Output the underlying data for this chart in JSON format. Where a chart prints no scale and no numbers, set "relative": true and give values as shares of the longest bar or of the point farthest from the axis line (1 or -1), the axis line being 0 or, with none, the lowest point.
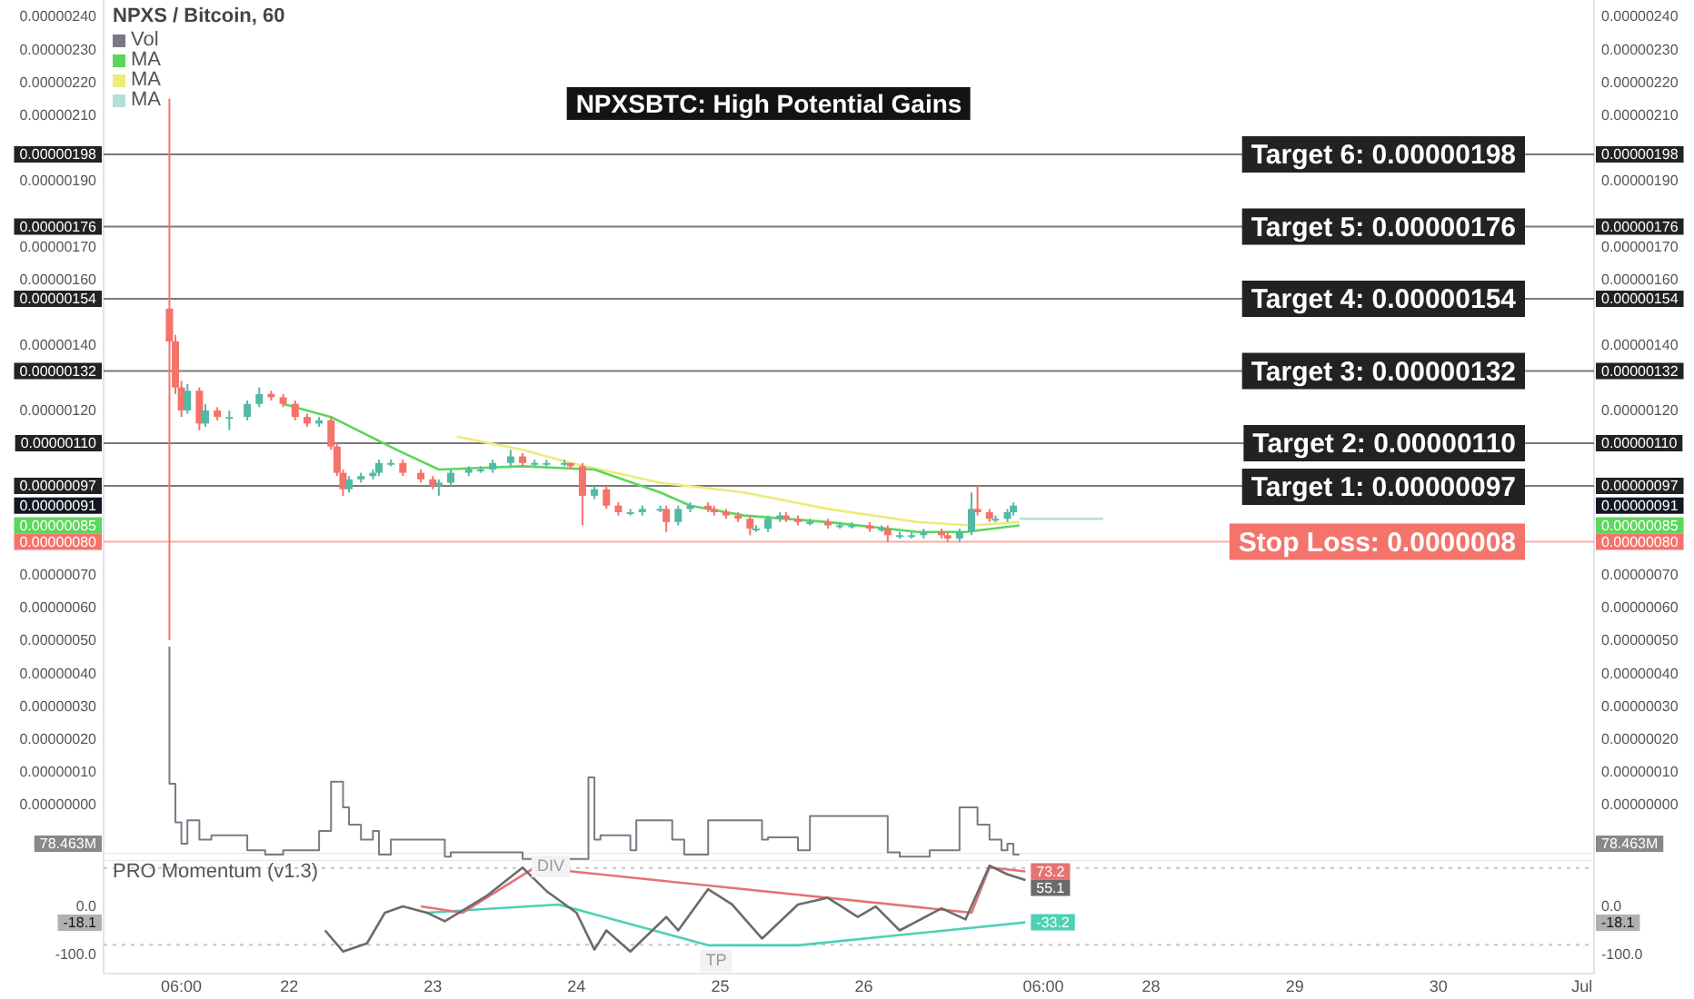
{
  "chart_data": [
    {
      "type": "candlestick",
      "title": "NPXSBTC: High Potential Gains",
      "subtitle": "NPXS / Bitcoin, 60",
      "legend": "top left",
      "tick_labels": "y",
      "x": [
        "--06-21T04:00",
        "--06-21T05:00",
        "--06-21T06:00",
        "--06-21T07:00",
        "--06-21T09:00",
        "--06-21T10:00",
        "--06-21T12:00",
        "--06-21T14:00",
        "--06-21T17:00",
        "--06-21T19:00",
        "--06-21T21:00",
        "--06-21T23:00",
        "--06-22T01:00",
        "--06-22T03:00",
        "--06-22T05:00",
        "--06-22T07:00",
        "--06-22T08:00",
        "--06-22T09:00",
        "--06-22T10:00",
        "--06-22T12:00",
        "--06-22T14:00",
        "--06-22T15:00",
        "--06-22T17:00",
        "--06-22T19:00",
        "--06-22T22:00",
        "--06-23T00:00",
        "--06-23T01:00",
        "--06-23T03:00",
        "--06-23T06:00",
        "--06-23T08:00",
        "--06-23T10:00",
        "--06-23T13:00",
        "--06-23T15:00",
        "--06-23T17:00",
        "--06-23T19:00",
        "--06-23T22:00",
        "--06-23T23:00",
        "--06-24T01:00",
        "--06-24T03:00",
        "--06-24T05:00",
        "--06-24T07:00",
        "--06-24T09:00",
        "--06-24T11:00",
        "--06-24T14:00",
        "--06-24T15:00",
        "--06-24T17:00",
        "--06-24T19:00",
        "--06-24T22:00",
        "--06-24T23:00",
        "--06-25T01:00",
        "--06-25T03:00",
        "--06-25T05:00",
        "--06-25T06:00",
        "--06-25T08:00",
        "--06-25T10:00",
        "--06-25T11:00",
        "--06-25T13:00",
        "--06-25T15:00",
        "--06-25T18:00",
        "--06-25T20:00",
        "--06-25T22:00",
        "--06-26T01:00",
        "--06-26T03:00",
        "--06-26T04:00",
        "--06-26T06:00",
        "--06-26T08:00",
        "--06-26T10:00",
        "--06-26T13:00",
        "--06-26T14:00",
        "--06-26T16:00",
        "--06-26T18:00",
        "--06-26T19:00",
        "--06-26T21:00",
        "--06-26T22:00",
        "--06-27T00:00",
        "--06-27T01:00"
      ],
      "ohlc": [
        [
          1.51e-06,
          2.15e-06,
          5e-07,
          1.41e-06
        ],
        [
          1.41e-06,
          1.43e-06,
          1.25e-06,
          1.27e-06
        ],
        [
          1.27e-06,
          1.29e-06,
          1.18e-06,
          1.2e-06
        ],
        [
          1.2e-06,
          1.28e-06,
          1.19e-06,
          1.26e-06
        ],
        [
          1.26e-06,
          1.27e-06,
          1.14e-06,
          1.16e-06
        ],
        [
          1.16e-06,
          1.22e-06,
          1.15e-06,
          1.2e-06
        ],
        [
          1.2e-06,
          1.21e-06,
          1.17e-06,
          1.18e-06
        ],
        [
          1.18e-06,
          1.2e-06,
          1.14e-06,
          1.18e-06
        ],
        [
          1.18e-06,
          1.23e-06,
          1.17e-06,
          1.22e-06
        ],
        [
          1.22e-06,
          1.27e-06,
          1.21e-06,
          1.25e-06
        ],
        [
          1.25e-06,
          1.26e-06,
          1.23e-06,
          1.24e-06
        ],
        [
          1.24e-06,
          1.25e-06,
          1.21e-06,
          1.22e-06
        ],
        [
          1.22e-06,
          1.23e-06,
          1.17e-06,
          1.18e-06
        ],
        [
          1.18e-06,
          1.19e-06,
          1.15e-06,
          1.16e-06
        ],
        [
          1.16e-06,
          1.18e-06,
          1.15e-06,
          1.17e-06
        ],
        [
          1.17e-06,
          1.18e-06,
          1.08e-06,
          1.09e-06
        ],
        [
          1.09e-06,
          1.1e-06,
          1e-06,
          1.01e-06
        ],
        [
          1.01e-06,
          1.02e-06,
          9.4e-07,
          9.6e-07
        ],
        [
          9.6e-07,
          1e-06,
          9.5e-07,
          9.9e-07
        ],
        [
          9.9e-07,
          1.01e-06,
          9.8e-07,
          1e-06
        ],
        [
          1e-06,
          1.02e-06,
          9.9e-07,
          1.01e-06
        ],
        [
          1.01e-06,
          1.05e-06,
          1e-06,
          1.04e-06
        ],
        [
          1.04e-06,
          1.05e-06,
          1.03e-06,
          1.04e-06
        ],
        [
          1.04e-06,
          1.05e-06,
          1e-06,
          1.01e-06
        ],
        [
          1.01e-06,
          1.02e-06,
          9.8e-07,
          9.9e-07
        ],
        [
          9.9e-07,
          1e-06,
          9.6e-07,
          9.7e-07
        ],
        [
          9.7e-07,
          9.9e-07,
          9.4e-07,
          9.8e-07
        ],
        [
          9.8e-07,
          1.02e-06,
          9.7e-07,
          1.01e-06
        ],
        [
          1.01e-06,
          1.03e-06,
          1e-06,
          1.02e-06
        ],
        [
          1.02e-06,
          1.03e-06,
          1.01e-06,
          1.02e-06
        ],
        [
          1.02e-06,
          1.05e-06,
          1.01e-06,
          1.04e-06
        ],
        [
          1.04e-06,
          1.08e-06,
          1.03e-06,
          1.06e-06
        ],
        [
          1.06e-06,
          1.07e-06,
          1.03e-06,
          1.04e-06
        ],
        [
          1.04e-06,
          1.05e-06,
          1.03e-06,
          1.04e-06
        ],
        [
          1.04e-06,
          1.05e-06,
          1.03e-06,
          1.04e-06
        ],
        [
          1.04e-06,
          1.05e-06,
          1.03e-06,
          1.04e-06
        ],
        [
          1.04e-06,
          1.04e-06,
          1.02e-06,
          1.03e-06
        ],
        [
          1.03e-06,
          1.04e-06,
          8.5e-07,
          9.4e-07
        ],
        [
          9.4e-07,
          9.7e-07,
          9.3e-07,
          9.6e-07
        ],
        [
          9.6e-07,
          9.7e-07,
          9e-07,
          9.1e-07
        ],
        [
          9.1e-07,
          9.2e-07,
          8.8e-07,
          8.9e-07
        ],
        [
          8.9e-07,
          9e-07,
          8.8e-07,
          8.9e-07
        ],
        [
          8.9e-07,
          9.1e-07,
          8.8e-07,
          9e-07
        ],
        [
          9e-07,
          9.1e-07,
          8.9e-07,
          9e-07
        ],
        [
          9e-07,
          9.1e-07,
          8.3e-07,
          8.6e-07
        ],
        [
          8.6e-07,
          9.1e-07,
          8.5e-07,
          9e-07
        ],
        [
          9e-07,
          9.2e-07,
          8.9e-07,
          9.1e-07
        ],
        [
          9.1e-07,
          9.2e-07,
          8.9e-07,
          9e-07
        ],
        [
          9e-07,
          9.1e-07,
          8.8e-07,
          8.9e-07
        ],
        [
          8.9e-07,
          9e-07,
          8.7e-07,
          8.8e-07
        ],
        [
          8.8e-07,
          8.9e-07,
          8.6e-07,
          8.7e-07
        ],
        [
          8.7e-07,
          8.8e-07,
          8.2e-07,
          8.4e-07
        ],
        [
          8.4e-07,
          8.5e-07,
          8.3e-07,
          8.4e-07
        ],
        [
          8.4e-07,
          8.8e-07,
          8.3e-07,
          8.7e-07
        ],
        [
          8.7e-07,
          8.9e-07,
          8.6e-07,
          8.8e-07
        ],
        [
          8.8e-07,
          8.9e-07,
          8.6e-07,
          8.7e-07
        ],
        [
          8.7e-07,
          8.8e-07,
          8.5e-07,
          8.6e-07
        ],
        [
          8.6e-07,
          8.7e-07,
          8.5e-07,
          8.6e-07
        ],
        [
          8.6e-07,
          8.7e-07,
          8.4e-07,
          8.5e-07
        ],
        [
          8.5e-07,
          8.6e-07,
          8.4e-07,
          8.5e-07
        ],
        [
          8.5e-07,
          8.6e-07,
          8.4e-07,
          8.5e-07
        ],
        [
          8.5e-07,
          8.6e-07,
          8.3e-07,
          8.4e-07
        ],
        [
          8.4e-07,
          8.5e-07,
          8.3e-07,
          8.4e-07
        ],
        [
          8.4e-07,
          8.5e-07,
          8e-07,
          8.2e-07
        ],
        [
          8.2e-07,
          8.3e-07,
          8.1e-07,
          8.2e-07
        ],
        [
          8.2e-07,
          8.3e-07,
          8.1e-07,
          8.2e-07
        ],
        [
          8.2e-07,
          8.4e-07,
          8.1e-07,
          8.3e-07
        ],
        [
          8.3e-07,
          8.4e-07,
          8.1e-07,
          8.2e-07
        ],
        [
          8.2e-07,
          8.3e-07,
          8e-07,
          8.1e-07
        ],
        [
          8.1e-07,
          8.4e-07,
          8e-07,
          8.3e-07
        ],
        [
          8.3e-07,
          9.5e-07,
          8.2e-07,
          9e-07
        ],
        [
          9e-07,
          9.7e-07,
          8.8e-07,
          8.9e-07
        ],
        [
          8.9e-07,
          9e-07,
          8.6e-07,
          8.7e-07
        ],
        [
          8.7e-07,
          8.8e-07,
          8.6e-07,
          8.7e-07
        ],
        [
          8.7e-07,
          9e-07,
          8.6e-07,
          8.9e-07
        ],
        [
          8.9e-07,
          9.2e-07,
          8.8e-07,
          9.1e-07
        ]
      ],
      "series": [
        {
          "type": "line",
          "name": "MA",
          "color": "#5cd65c",
          "x": [
            "--06-21T23:00",
            "--06-22T07:00",
            "--06-22T18:00",
            "--06-23T01:00",
            "--06-23T15:00",
            "--06-24T03:00",
            "--06-24T14:00",
            "--06-24T19:00",
            "--06-25T04:00",
            "--06-25T18:00",
            "--06-26T09:00",
            "--06-26T17:00",
            "--06-27T02:00"
          ],
          "values": [
            1.22e-06,
            1.18e-06,
            1.08e-06,
            1.02e-06,
            1.03e-06,
            1.02e-06,
            9.5e-07,
            9.1e-07,
            8.8e-07,
            8.6e-07,
            8.3e-07,
            8.3e-07,
            8.5e-07
          ]
        },
        {
          "type": "line",
          "name": "MA",
          "color": "#ecec7a",
          "x": [
            "--06-23T04:00",
            "--06-23T15:00",
            "--06-23T23:00",
            "--06-24T14:00",
            "--06-25T04:00",
            "--06-25T18:00",
            "--06-26T09:00",
            "--06-26T18:00",
            "--06-27T02:00"
          ],
          "values": [
            1.12e-06,
            1.08e-06,
            1.04e-06,
            9.8e-07,
            9.5e-07,
            9e-07,
            8.6e-07,
            8.5e-07,
            8.6e-07
          ]
        },
        {
          "type": "line",
          "name": "MA",
          "color": "#b2e0d6",
          "x": [
            "--06-27T02:00",
            "--06-27T16:00"
          ],
          "values": [
            8.7e-07,
            8.7e-07
          ]
        }
      ],
      "ref_lines": [
        {
          "axis": "y",
          "value": 1.98e-06,
          "label": "Target 6: 0.00000198",
          "color": "#222222"
        },
        {
          "axis": "y",
          "value": 1.76e-06,
          "label": "Target 5: 0.00000176",
          "color": "#222222"
        },
        {
          "axis": "y",
          "value": 1.54e-06,
          "label": "Target 4: 0.00000154",
          "color": "#222222"
        },
        {
          "axis": "y",
          "value": 1.32e-06,
          "label": "Target 3: 0.00000132",
          "color": "#222222"
        },
        {
          "axis": "y",
          "value": 1.1e-06,
          "label": "Target 2: 0.00000110",
          "color": "#222222"
        },
        {
          "axis": "y",
          "value": 9.7e-07,
          "label": "Target 1: 0.00000097",
          "color": "#222222"
        },
        {
          "axis": "y",
          "value": 8e-07,
          "label": "Stop Loss: 0.0000008",
          "color": "#f4736b"
        }
      ],
      "xlim": [
        "--06-20T17:00",
        "--07-01T02:00"
      ],
      "xticks": [
        {
          "value": "--06-21T06:00",
          "label": "06:00"
        },
        {
          "value": "--06-22",
          "label": "22"
        },
        {
          "value": "--06-23",
          "label": "23"
        },
        {
          "value": "--06-24",
          "label": "24"
        },
        {
          "value": "--06-25",
          "label": "25"
        },
        {
          "value": "--06-26",
          "label": "26"
        },
        {
          "value": "--06-27T06:00",
          "label": "06:00"
        },
        {
          "value": "--06-28",
          "label": "28"
        },
        {
          "value": "--06-29",
          "label": "29"
        },
        {
          "value": "--06-30",
          "label": "30"
        },
        {
          "value": "--07-01",
          "label": "Jul"
        }
      ],
      "ylim": [
        -1.5e-07,
        2.45e-06
      ],
      "y2lim": [
        -1.5e-07,
        2.45e-06
      ],
      "yticks": [
        {
          "value": 0,
          "label": "0.00000000"
        },
        {
          "value": 1e-07,
          "label": "0.00000010"
        },
        {
          "value": 2e-07,
          "label": "0.00000020"
        },
        {
          "value": 3e-07,
          "label": "0.00000030"
        },
        {
          "value": 4e-07,
          "label": "0.00000040"
        },
        {
          "value": 5e-07,
          "label": "0.00000050"
        },
        {
          "value": 6e-07,
          "label": "0.00000060"
        },
        {
          "value": 7e-07,
          "label": "0.00000070"
        },
        {
          "value": 8e-07,
          "label": "0.00000080"
        },
        {
          "value": 1.1e-06,
          "label": "0.00000110"
        },
        {
          "value": 1.2e-06,
          "label": "0.00000120"
        },
        {
          "value": 1.4e-06,
          "label": "0.00000140"
        },
        {
          "value": 1.6e-06,
          "label": "0.00000160"
        },
        {
          "value": 1.7e-06,
          "label": "0.00000170"
        },
        {
          "value": 1.9e-06,
          "label": "0.00000190"
        },
        {
          "value": 2.1e-06,
          "label": "0.00000210"
        },
        {
          "value": 2.2e-06,
          "label": "0.00000220"
        },
        {
          "value": 2.3e-06,
          "label": "0.00000230"
        },
        {
          "value": 2.4e-06,
          "label": "0.00000240"
        },
        {
          "value": 1.98e-06,
          "label": "0.00000198"
        },
        {
          "value": 1.76e-06,
          "label": "0.00000176"
        },
        {
          "value": 1.54e-06,
          "label": "0.00000154"
        },
        {
          "value": 1.32e-06,
          "label": "0.00000132"
        },
        {
          "value": 9.7e-07,
          "label": "0.00000097"
        },
        {
          "value": 9.1e-07,
          "label": "0.00000091"
        },
        {
          "value": 8.5e-07,
          "label": "0.00000085"
        }
      ],
      "y2ticks": [
        {
          "value": 0,
          "label": "0.00000000"
        },
        {
          "value": 1e-07,
          "label": "0.00000010"
        },
        {
          "value": 2e-07,
          "label": "0.00000020"
        },
        {
          "value": 3e-07,
          "label": "0.00000030"
        },
        {
          "value": 4e-07,
          "label": "0.00000040"
        },
        {
          "value": 5e-07,
          "label": "0.00000050"
        },
        {
          "value": 6e-07,
          "label": "0.00000060"
        },
        {
          "value": 7e-07,
          "label": "0.00000070"
        },
        {
          "value": 8e-07,
          "label": "0.00000080"
        },
        {
          "value": 1.1e-06,
          "label": "0.00000110"
        },
        {
          "value": 1.2e-06,
          "label": "0.00000120"
        },
        {
          "value": 1.4e-06,
          "label": "0.00000140"
        },
        {
          "value": 1.6e-06,
          "label": "0.00000160"
        },
        {
          "value": 1.7e-06,
          "label": "0.00000170"
        },
        {
          "value": 1.9e-06,
          "label": "0.00000190"
        },
        {
          "value": 2.1e-06,
          "label": "0.00000210"
        },
        {
          "value": 2.2e-06,
          "label": "0.00000220"
        },
        {
          "value": 2.3e-06,
          "label": "0.00000230"
        },
        {
          "value": 2.4e-06,
          "label": "0.00000240"
        },
        {
          "value": 1.98e-06,
          "label": "0.00000198"
        },
        {
          "value": 1.76e-06,
          "label": "0.00000176"
        },
        {
          "value": 1.54e-06,
          "label": "0.00000154"
        },
        {
          "value": 1.32e-06,
          "label": "0.00000132"
        },
        {
          "value": 9.7e-07,
          "label": "0.00000097"
        },
        {
          "value": 9.1e-07,
          "label": "0.00000091"
        },
        {
          "value": 8.5e-07,
          "label": "0.00000085"
        }
      ]
    },
    {
      "type": "step",
      "relative": true,
      "legend": "top left",
      "tick_labels": false,
      "annotations": [
        "78.463M"
      ],
      "xlim": [
        "--06-20T17:00",
        "--07-01T02:00"
      ],
      "xticks": [
        {
          "value": "--06-21T06:00",
          "label": "06:00"
        },
        {
          "value": "--06-22",
          "label": "22"
        },
        {
          "value": "--06-23",
          "label": "23"
        },
        {
          "value": "--06-24",
          "label": "24"
        },
        {
          "value": "--06-25",
          "label": "25"
        },
        {
          "value": "--06-26",
          "label": "26"
        },
        {
          "value": "--06-27T06:00",
          "label": "06:00"
        },
        {
          "value": "--06-28",
          "label": "28"
        },
        {
          "value": "--06-29",
          "label": "29"
        },
        {
          "value": "--06-30",
          "label": "30"
        },
        {
          "value": "--07-01",
          "label": "Jul"
        }
      ],
      "x": [
        "--06-21T04:00",
        "--06-21T05:00",
        "--06-21T06:00",
        "--06-21T07:00",
        "--06-21T09:00",
        "--06-21T11:00",
        "--06-21T14:00",
        "--06-21T17:00",
        "--06-21T19:00",
        "--06-21T20:00",
        "--06-21T23:00",
        "--06-22T05:00",
        "--06-22T07:00",
        "--06-22T09:00",
        "--06-22T10:00",
        "--06-22T12:00",
        "--06-22T14:00",
        "--06-22T15:00",
        "--06-22T17:00",
        "--06-23T02:00",
        "--06-23T03:00",
        "--06-23T15:00",
        "--06-24T02:00",
        "--06-24T03:00",
        "--06-24T04:00",
        "--06-24T06:00",
        "--06-24T09:00",
        "--06-24T10:00",
        "--06-24T16:00",
        "--06-24T18:00",
        "--06-24T22:00",
        "--06-25T07:00",
        "--06-25T08:00",
        "--06-25T13:00",
        "--06-25T15:00",
        "--06-26T04:00",
        "--06-26T06:00",
        "--06-26T11:00",
        "--06-26T16:00",
        "--06-26T19:00",
        "--06-26T21:00",
        "--06-26T23:00",
        "--06-27T00:00",
        "--06-27T01:00",
        "--06-27T02:00"
      ],
      "series": [
        {
          "name": "Vol",
          "color": "#787b86",
          "values": [
            1,
            0.36,
            0.18,
            0.08,
            0.19,
            0.1,
            0.12,
            0.12,
            0.05,
            0.05,
            0.03,
            0.05,
            0.14,
            0.37,
            0.25,
            0.17,
            0.1,
            0.14,
            0.03,
            0.1,
            0.02,
            0.04,
            0.01,
            0.39,
            0.1,
            0.12,
            0.12,
            0.05,
            0.19,
            0.1,
            0.03,
            0.19,
            0.1,
            0.11,
            0.05,
            0.21,
            0.04,
            0.02,
            0.05,
            0.25,
            0.17,
            0.1,
            0.05,
            0.08,
            0.03
          ]
        }
      ]
    },
    {
      "type": "line",
      "title": "PRO Momentum (v1.3)",
      "annotations": [
        "DIV",
        "TP",
        "-18.1"
      ],
      "xlim": [
        "--06-20T17:00",
        "--07-01T02:00"
      ],
      "ylim": [
        -140,
        110
      ],
      "y2lim": [
        -140,
        110
      ],
      "xticks": [
        {
          "value": "--06-21T06:00",
          "label": "06:00"
        },
        {
          "value": "--06-22",
          "label": "22"
        },
        {
          "value": "--06-23",
          "label": "23"
        },
        {
          "value": "--06-24",
          "label": "24"
        },
        {
          "value": "--06-25",
          "label": "25"
        },
        {
          "value": "--06-26",
          "label": "26"
        },
        {
          "value": "--06-27T06:00",
          "label": "06:00"
        },
        {
          "value": "--06-28",
          "label": "28"
        },
        {
          "value": "--06-29",
          "label": "29"
        },
        {
          "value": "--06-30",
          "label": "30"
        },
        {
          "value": "--07-01",
          "label": "Jul"
        }
      ],
      "yticks": [
        {
          "value": 0,
          "label": "0.0"
        },
        {
          "value": -100,
          "label": "-100.0"
        }
      ],
      "y2ticks": [
        {
          "value": 0,
          "label": "0.0"
        },
        {
          "value": -100,
          "label": "-100.0"
        }
      ],
      "series": [
        {
          "color": "#6b6b6b",
          "x": [
            "--06-22T06:00",
            "--06-22T09:00",
            "--06-22T13:00",
            "--06-22T16:00",
            "--06-22T19:00",
            "--06-22T23:00",
            "--06-23T02:00",
            "--06-23T09:00",
            "--06-23T15:00",
            "--06-23T19:00",
            "--06-24T00:00",
            "--06-24T03:00",
            "--06-24T05:00",
            "--06-24T09:00",
            "--06-24T15:00",
            "--06-24T17:00",
            "--06-24T22:00",
            "--06-25T02:00",
            "--06-25T07:00",
            "--06-25T13:00",
            "--06-25T18:00",
            "--06-25T23:00",
            "--06-26T02:00",
            "--06-26T06:00",
            "--06-26T13:00",
            "--06-26T17:00",
            "--06-26T21:00",
            "--06-27T00:00",
            "--06-27T03:00"
          ],
          "values": [
            -50,
            -94,
            -77,
            -13,
            0,
            -13,
            -31,
            22,
            81,
            32,
            -13,
            -90,
            -50,
            -94,
            -22,
            -50,
            36,
            4,
            -67,
            4,
            18,
            -22,
            0,
            -50,
            -4,
            -27,
            85,
            67,
            55.1
          ],
          "value_labels": [
            null,
            null,
            null,
            null,
            null,
            null,
            null,
            null,
            null,
            null,
            null,
            null,
            null,
            null,
            null,
            null,
            null,
            null,
            null,
            null,
            null,
            null,
            null,
            null,
            null,
            null,
            null,
            null,
            "55.1"
          ]
        },
        {
          "color": "#e57373",
          "x": [
            "--06-22T22:00",
            "--06-23T05:00",
            "--06-23T17:00",
            "--06-26T18:00",
            "--06-26T21:00",
            "--06-27T03:00"
          ],
          "values": [
            0,
            -13,
            81,
            -13,
            81,
            73.2
          ],
          "value_labels": [
            null,
            null,
            null,
            null,
            null,
            "73.2"
          ]
        },
        {
          "color": "#4dd0b5",
          "x": [
            "--06-22T23:00",
            "--06-23T21:00",
            "--06-24T22:00",
            "--06-25T13:00",
            "--06-27T03:00"
          ],
          "values": [
            -13,
            4,
            -81,
            -81,
            -33.2
          ],
          "value_labels": [
            null,
            null,
            null,
            null,
            "-33.2"
          ]
        }
      ],
      "ref_lines": [
        {
          "axis": "y",
          "value": 80,
          "color": "#9e9e9e",
          "line_style": "dotted"
        },
        {
          "axis": "y",
          "value": -80,
          "color": "#9e9e9e",
          "line_style": "dotted"
        }
      ]
    }
  ]
}
